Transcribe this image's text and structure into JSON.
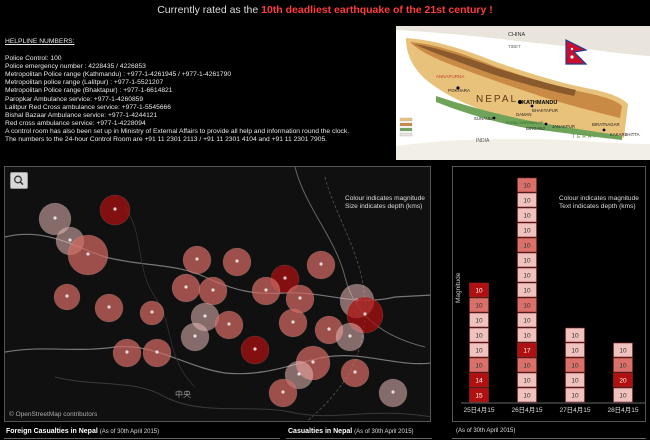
{
  "headline": {
    "prefix": "Currently rated as the ",
    "highlight": "10th deadliest earthquake of the 21st century !"
  },
  "helpline": {
    "heading": "HELPLINE NUMBERS:",
    "lines": [
      "Police Control: 100",
      "Police emergency number : 4228435 / 4226853",
      "Metropolitan Police range (Kathmandu) : +977-1-4261945 / +977-1-4261790",
      "Metropolitan police range (Lalitpur) : +977-1-5521207",
      "Metropolitan Police range (Bhaktapur) : +977-1-6614821",
      "Paropkar Ambulance service: +977-1-4260859",
      "Lalitpur Red Cross ambulance service: +977-1-5545666",
      "Bishal Bazaar Ambulance service: +977-1-4244121",
      "Red cross ambulance service: +977-1-4228094",
      "A control room has also been set up in Ministry of External Affairs to provide all help and information round the clock.",
      "The numbers to the 24-hour Control Room are +91 11 2301 2113 / +91 11 2301 4104 and +91 11 2301 7905."
    ]
  },
  "nepal_map": {
    "labels": {
      "china": "CHINA",
      "tibet": "TIBET",
      "nepal": "NEPAL",
      "india": "INDIA",
      "annapurna": "ANNAPURNA",
      "pokhara": "POKHARA",
      "kathmandu": "KATHMANDU",
      "bhaktapur": "BHAKTAPUR",
      "sunauli": "SUNAULI",
      "birganj": "BIRGANJ",
      "janakpur": "JANAKPUR",
      "daman": "DAMAN",
      "biratnagar": "BIRATNAGAR",
      "kakarbhitta": "KAKARBHITTA",
      "chitwan": "ROYAL CHITWAN NP",
      "terai": "TERAI"
    }
  },
  "map_panel": {
    "legend_line1": "Colour indicates magnitude",
    "legend_line2": "Size indicates depth (kms)",
    "place_label": "中央",
    "credit": "© OpenStreetMap contributors",
    "colors": {
      "low": "#e6b8b4",
      "mid": "#d46a62",
      "high": "#b01010"
    }
  },
  "chart_data": {
    "type": "bar",
    "ylabel": "Magnitude",
    "legend_line1": "Colour indicates magnitude",
    "legend_line2": "Text indicates depth (kms)",
    "categories": [
      "25日4月15",
      "26日4月15",
      "27日4月15",
      "28日4月15"
    ],
    "stacks": [
      [
        "10",
        "10",
        "10",
        "10",
        "10",
        "10",
        "14",
        "15"
      ],
      [
        "10",
        "10",
        "10",
        "10",
        "10",
        "10",
        "10",
        "10",
        "10",
        "10",
        "10",
        "17",
        "10",
        "10",
        "10"
      ],
      [
        "10",
        "10",
        "10",
        "10",
        "10"
      ],
      [
        "10",
        "10",
        "20",
        "10"
      ]
    ],
    "colors": {
      "high": "#b01010",
      "mid": "#d9706a",
      "low": "#f0c2bd"
    }
  },
  "footer": {
    "foreign_title": "Foreign Casualties in Nepal",
    "foreign_sub": "(As of 30th April 2015)",
    "casualties_title": "Casualties in Nepal",
    "casualties_sub": "(As of 30th April 2015)",
    "right_sub": "(As of 30th April 2015)"
  }
}
